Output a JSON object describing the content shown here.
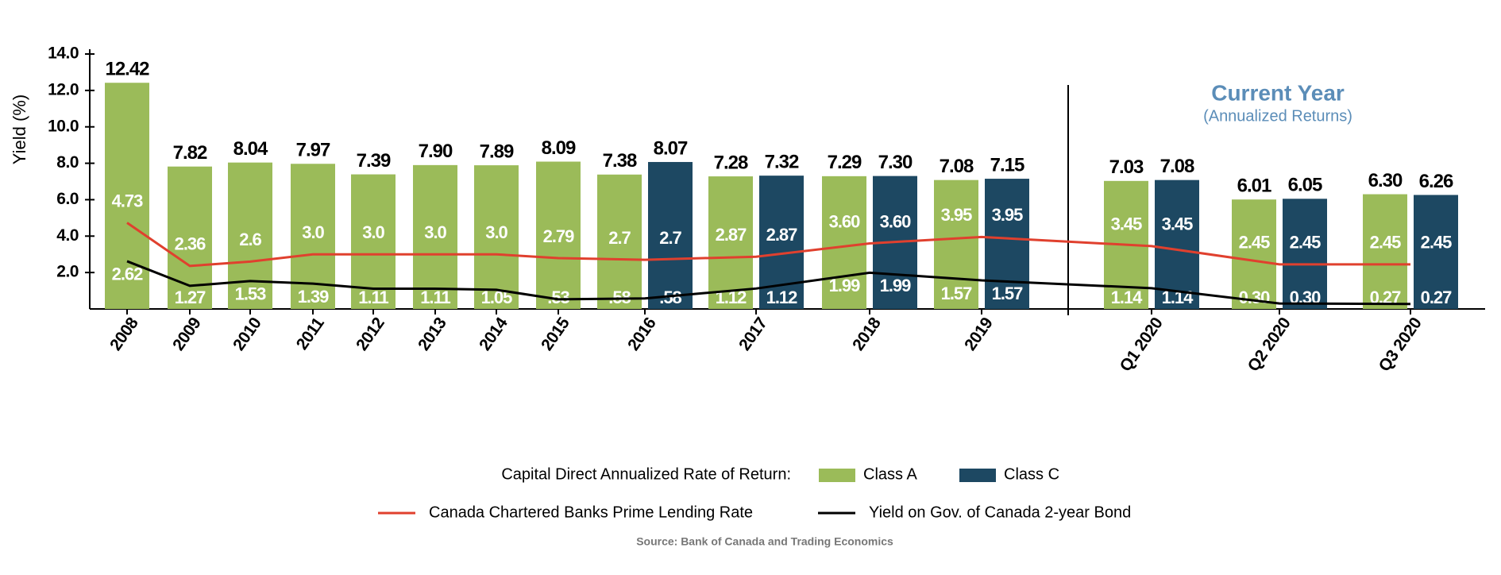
{
  "chart_data": {
    "type": "bar",
    "y_label": "Yield (%)",
    "annotation_title": "Current Year",
    "annotation_subtitle": "(Annualized Returns)",
    "legend_title": "Capital Direct Annualized Rate of Return:",
    "source": "Source: Bank of Canada and Trading Economics",
    "categories": [
      "2008",
      "2009",
      "2010",
      "2011",
      "2012",
      "2013",
      "2014",
      "2015",
      "2016",
      "2017",
      "2018",
      "2019",
      "Q1 2020",
      "Q2 2020",
      "Q3 2020"
    ],
    "ylim": [
      0,
      14
    ],
    "yticks": [
      {
        "value": 2,
        "label": "2.0"
      },
      {
        "value": 4,
        "label": "4.0"
      },
      {
        "value": 6,
        "label": "6.0"
      },
      {
        "value": 8,
        "label": "8.0"
      },
      {
        "value": 10,
        "label": "10.0"
      },
      {
        "value": 12,
        "label": "12.0"
      },
      {
        "value": 14,
        "label": "14.0"
      }
    ],
    "series": [
      {
        "name": "Class A",
        "type": "bar",
        "color": "#9bbb59",
        "values": [
          12.42,
          7.82,
          8.04,
          7.97,
          7.39,
          7.9,
          7.89,
          8.09,
          7.38,
          7.28,
          7.29,
          7.08,
          7.03,
          6.01,
          6.3
        ],
        "value_labels": [
          "12.42",
          "7.82",
          "8.04",
          "7.97",
          "7.39",
          "7.90",
          "7.89",
          "8.09",
          "7.38",
          "7.28",
          "7.29",
          "7.08",
          "7.03",
          "6.01",
          "6.30"
        ]
      },
      {
        "name": "Class C",
        "type": "bar",
        "color": "#1d4862",
        "values": [
          null,
          null,
          null,
          null,
          null,
          null,
          null,
          null,
          8.07,
          7.32,
          7.3,
          7.15,
          7.08,
          6.05,
          6.26
        ],
        "value_labels": [
          null,
          null,
          null,
          null,
          null,
          null,
          null,
          null,
          "8.07",
          "7.32",
          "7.30",
          "7.15",
          "7.08",
          "6.05",
          "6.26"
        ]
      },
      {
        "name": "Canada Chartered Banks Prime Lending Rate",
        "type": "line",
        "color": "#e0402e",
        "values": [
          4.73,
          2.36,
          2.6,
          3.0,
          3.0,
          3.0,
          3.0,
          2.79,
          2.7,
          2.87,
          3.6,
          3.95,
          3.45,
          2.45,
          2.45
        ],
        "value_labels": [
          "4.73",
          "2.36",
          "2.6",
          "3.0",
          "3.0",
          "3.0",
          "3.0",
          "2.79",
          "2.7",
          "2.87",
          "3.60",
          "3.95",
          "3.45",
          "2.45",
          "2.45"
        ]
      },
      {
        "name": "Yield on Gov. of Canada 2-year Bond",
        "type": "line",
        "color": "#000000",
        "values": [
          2.62,
          1.27,
          1.53,
          1.39,
          1.11,
          1.11,
          1.05,
          0.53,
          0.58,
          1.12,
          1.99,
          1.57,
          1.14,
          0.3,
          0.27
        ],
        "value_labels": [
          "2.62",
          "1.27",
          "1.53",
          "1.39",
          "1.11",
          "1.11",
          "1.05",
          ".53",
          ".58",
          "1.12",
          "1.99",
          "1.57",
          "1.14",
          "0.30",
          "0.27"
        ]
      }
    ]
  }
}
